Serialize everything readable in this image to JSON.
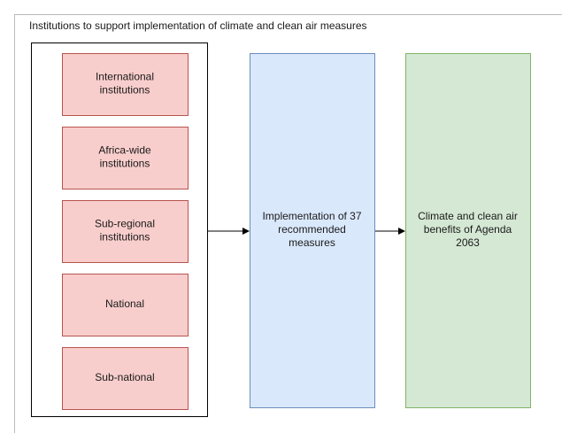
{
  "header": {
    "title": "Institutions to support implementation of climate and clean air measures"
  },
  "nodes": [
    {
      "lines": [
        "International",
        "institutions"
      ]
    },
    {
      "lines": [
        "Africa-wide",
        "institutions"
      ]
    },
    {
      "lines": [
        "Sub-regional",
        "institutions"
      ]
    },
    {
      "lines": [
        "National"
      ]
    },
    {
      "lines": [
        "Sub-national"
      ]
    },
    {
      "lines": [
        "Implementation of 37",
        "recommended",
        "measures"
      ]
    },
    {
      "lines": [
        "Climate and clean air",
        "benefits of Agenda",
        "2063"
      ]
    }
  ]
}
